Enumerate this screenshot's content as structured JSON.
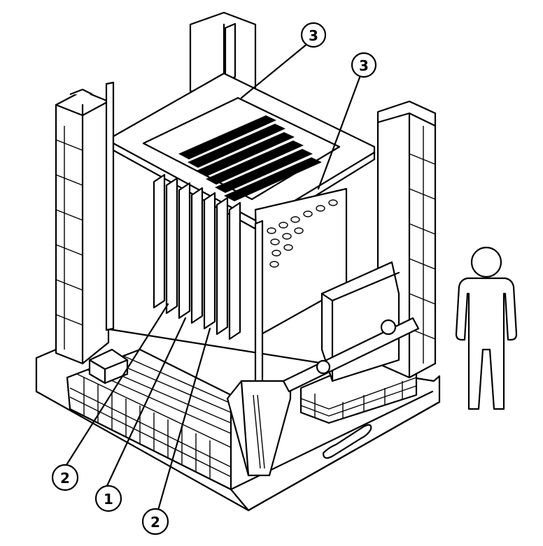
{
  "callouts": [
    {
      "id": "c3a",
      "label": "3"
    },
    {
      "id": "c3b",
      "label": "3"
    },
    {
      "id": "c2a",
      "label": "2"
    },
    {
      "id": "c1",
      "label": "1"
    },
    {
      "id": "c2b",
      "label": "2"
    }
  ]
}
